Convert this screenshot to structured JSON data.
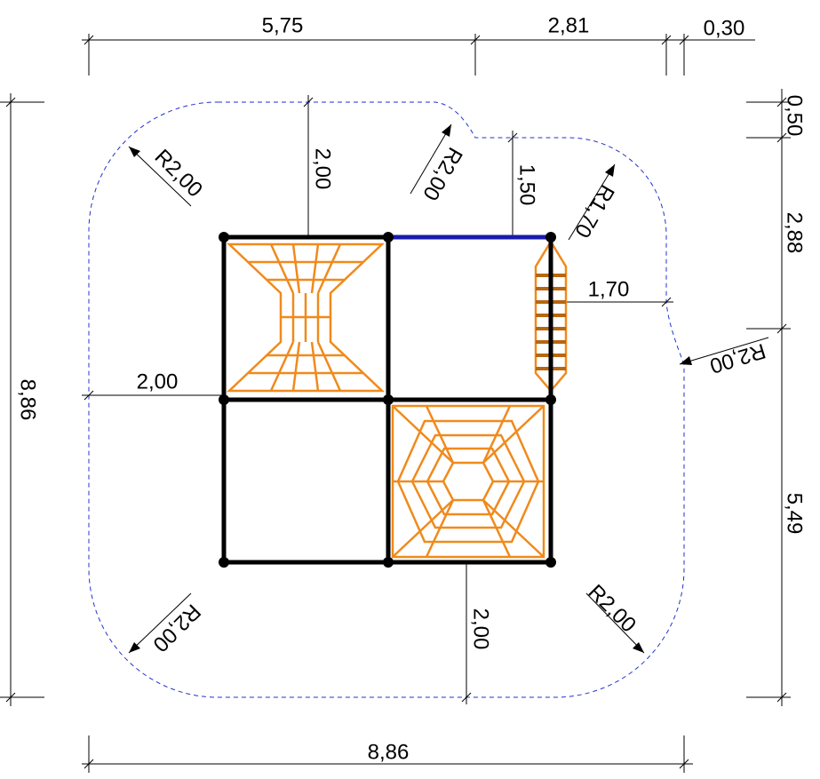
{
  "dimensions": {
    "top": [
      "5,75",
      "2,81",
      "0,30"
    ],
    "right": [
      "0,50",
      "2,88",
      "5,49"
    ],
    "left": "8,86",
    "bottom": "8,86",
    "inner": [
      "2,00",
      "1,50",
      "1,70",
      "2,00",
      "2,00"
    ]
  },
  "radii": [
    "R2,00",
    "R2,00",
    "R1,70",
    "R2,00",
    "R2,00",
    "R2,00"
  ]
}
